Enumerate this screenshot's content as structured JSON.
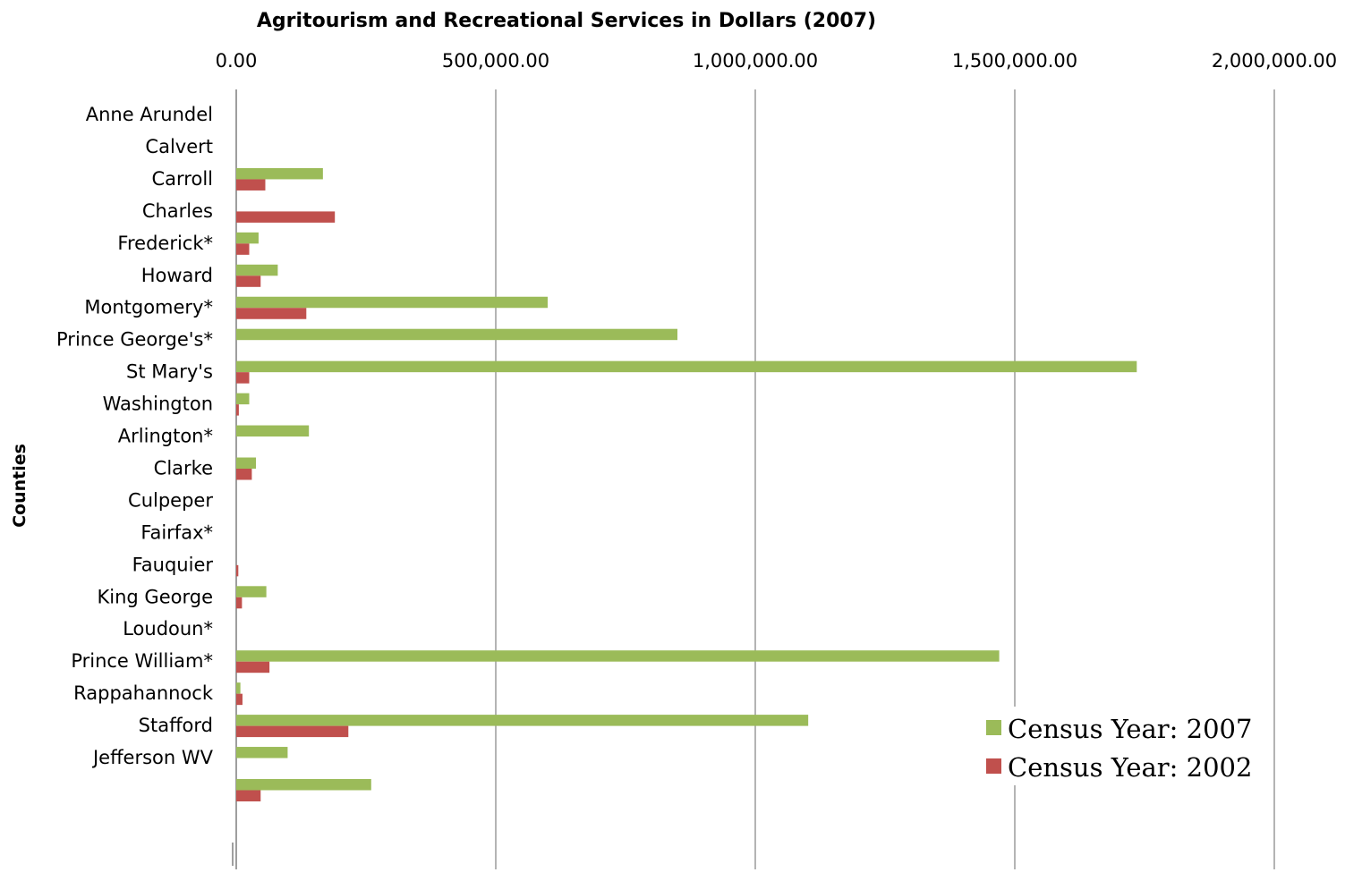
{
  "chart_data": {
    "type": "bar",
    "orientation": "horizontal",
    "title": "Agritourism and Recreational Services in Dollars (2007)",
    "xlabel": "",
    "ylabel": "Counties",
    "xlim": [
      0,
      2000000
    ],
    "x_ticks": [
      0,
      500000,
      1000000,
      1500000,
      2000000
    ],
    "x_tick_labels": [
      "0.00",
      "500,000.00",
      "1,000,000.00",
      "1,500,000.00",
      "2,000,000.00"
    ],
    "x_axis_position": "top",
    "grid": true,
    "legend_position": "bottom-right",
    "categories": [
      "Anne Arundel",
      "Calvert",
      "Carroll",
      "Charles",
      "Frederick*",
      "Howard",
      "Montgomery*",
      "Prince George's*",
      "St Mary's",
      "Washington",
      "Arlington*",
      "Clarke",
      "Culpeper",
      "Fairfax*",
      "Fauquier",
      "King George",
      "Loudoun*",
      "Prince William*",
      "Rappahannock",
      "Stafford",
      "Jefferson WV"
    ],
    "series": [
      {
        "name": "Census Year: 2007",
        "color": "#9bbb59",
        "values": [
          0,
          167000,
          0,
          43000,
          80000,
          600000,
          850000,
          1735000,
          25000,
          140000,
          38000,
          0,
          0,
          0,
          58000,
          0,
          1470000,
          8000,
          1102000,
          99000,
          260000
        ]
      },
      {
        "name": "Census Year: 2002",
        "color": "#c0504d",
        "values": [
          0,
          56000,
          190000,
          25000,
          47000,
          135000,
          0,
          25000,
          5000,
          0,
          30000,
          0,
          0,
          4000,
          11000,
          0,
          64000,
          12000,
          216000,
          0,
          47000
        ]
      }
    ]
  }
}
